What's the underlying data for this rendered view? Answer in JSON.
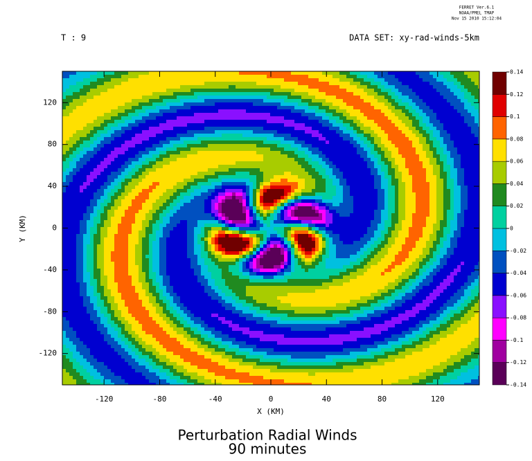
{
  "chart_data": {
    "type": "contour",
    "stamp": [
      "FERRET  Ver.6.1",
      "NOAA/PMEL TMAP",
      "Nov 15 2010 15:12:04"
    ],
    "time_label": "T : 9",
    "dataset_label": "DATA SET: xy-rad-winds-5km",
    "title": [
      "Perturbation Radial Winds",
      "90 minutes"
    ],
    "x_label": "X (KM)",
    "y_label": "Y (KM)",
    "xlim": [
      -150,
      150
    ],
    "ylim": [
      -150,
      150
    ],
    "xticks": [
      -120,
      -80,
      -40,
      0,
      40,
      80,
      120
    ],
    "yticks": [
      -120,
      -80,
      -40,
      0,
      40,
      80,
      120
    ],
    "levels": [
      -0.14,
      -0.12,
      -0.1,
      -0.08,
      -0.06,
      -0.04,
      -0.02,
      0,
      0.02,
      0.04,
      0.06,
      0.08,
      0.1,
      0.12,
      0.14
    ],
    "colors": [
      "#5a0058",
      "#a000a0",
      "#ff00ff",
      "#8a10ff",
      "#0000d0",
      "#0050c0",
      "#00c0e0",
      "#00d0a0",
      "#208a20",
      "#a8cc00",
      "#ffe000",
      "#ff6400",
      "#e00000",
      "#700000"
    ]
  }
}
